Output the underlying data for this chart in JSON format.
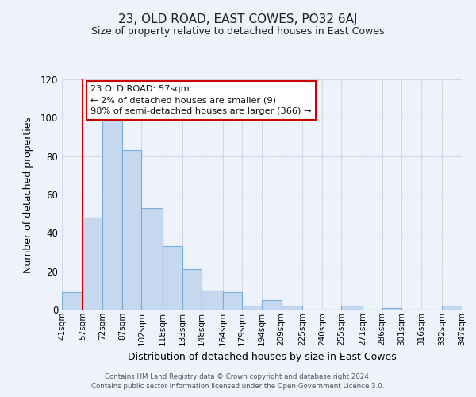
{
  "title": "23, OLD ROAD, EAST COWES, PO32 6AJ",
  "subtitle": "Size of property relative to detached houses in East Cowes",
  "xlabel": "Distribution of detached houses by size in East Cowes",
  "ylabel": "Number of detached properties",
  "bar_left_edges": [
    41,
    57,
    72,
    87,
    102,
    118,
    133,
    148,
    164,
    179,
    194,
    209,
    225,
    240,
    255,
    271,
    286,
    301,
    316,
    332
  ],
  "bar_widths": [
    16,
    15,
    15,
    15,
    16,
    15,
    15,
    16,
    15,
    15,
    15,
    16,
    15,
    15,
    16,
    15,
    15,
    15,
    16,
    15
  ],
  "bar_heights": [
    9,
    48,
    99,
    83,
    53,
    33,
    21,
    10,
    9,
    2,
    5,
    2,
    0,
    0,
    2,
    0,
    1,
    0,
    0,
    2
  ],
  "bar_color": "#c5d8f0",
  "bar_edge_color": "#7aaed6",
  "x_tick_labels": [
    "41sqm",
    "57sqm",
    "72sqm",
    "87sqm",
    "102sqm",
    "118sqm",
    "133sqm",
    "148sqm",
    "164sqm",
    "179sqm",
    "194sqm",
    "209sqm",
    "225sqm",
    "240sqm",
    "255sqm",
    "271sqm",
    "286sqm",
    "301sqm",
    "316sqm",
    "332sqm",
    "347sqm"
  ],
  "x_tick_positions": [
    41,
    57,
    72,
    87,
    102,
    118,
    133,
    148,
    164,
    179,
    194,
    209,
    225,
    240,
    255,
    271,
    286,
    301,
    316,
    332,
    347
  ],
  "ylim": [
    0,
    120
  ],
  "yticks": [
    0,
    20,
    40,
    60,
    80,
    100,
    120
  ],
  "vline_x": 57,
  "vline_color": "#cc0000",
  "annotation_text": "23 OLD ROAD: 57sqm\n← 2% of detached houses are smaller (9)\n98% of semi-detached houses are larger (366) →",
  "annotation_box_color": "#cc0000",
  "annotation_bg": "#ffffff",
  "bg_color": "#eef2fb",
  "grid_color": "#d0d8ee",
  "footer_line1": "Contains HM Land Registry data © Crown copyright and database right 2024.",
  "footer_line2": "Contains public sector information licensed under the Open Government Licence 3.0.",
  "xlim_left": 41,
  "xlim_right": 347
}
